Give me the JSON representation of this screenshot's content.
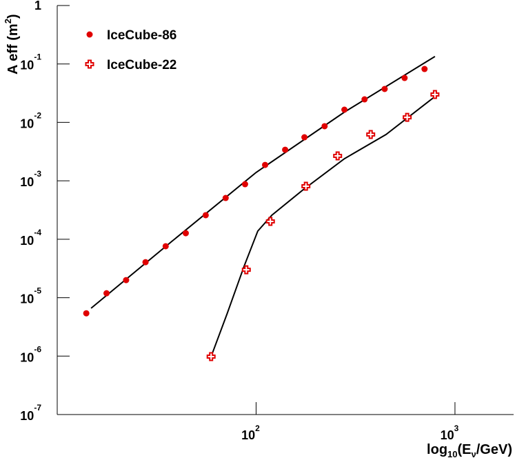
{
  "chart_data": {
    "type": "scatter",
    "x_label": [
      "log",
      "10",
      "(E",
      "ν",
      "/GeV)"
    ],
    "y_label": [
      "A eff (m",
      "2",
      ")"
    ],
    "xlog": true,
    "ylog": true,
    "xlim": [
      10,
      1972
    ],
    "ylim": [
      1e-07,
      1
    ],
    "xticks": [
      {
        "value": 100,
        "label": "10",
        "exponent": "2"
      },
      {
        "value": 1000,
        "label": "10",
        "exponent": "3"
      }
    ],
    "yticks": [
      1,
      {
        "value": 0.1,
        "label": "10",
        "exponent": "-1"
      },
      {
        "value": 0.01,
        "label": "10",
        "exponent": "-2"
      },
      {
        "value": 0.001,
        "label": "10",
        "exponent": "-3"
      },
      {
        "value": 0.0001,
        "label": "10",
        "exponent": "-4"
      },
      {
        "value": 1e-05,
        "label": "10",
        "exponent": "-5"
      },
      {
        "value": 1e-06,
        "label": "10",
        "exponent": "-6"
      },
      {
        "value": 1e-07,
        "label": "10",
        "exponent": "-7"
      }
    ],
    "legend": "top-left",
    "series": [
      {
        "name": "IceCube-86",
        "color": "#e00000",
        "marker": "circle",
        "x": [
          14.0,
          17.7,
          22.2,
          27.8,
          35.1,
          44.3,
          55.8,
          70.3,
          88,
          111,
          140,
          175,
          221,
          278,
          351,
          443,
          558,
          703
        ],
        "values": [
          5.4e-06,
          1.19e-05,
          2e-05,
          4.05e-05,
          7.6e-05,
          0.000127,
          0.000258,
          0.000508,
          0.000875,
          0.00187,
          0.0034,
          0.00556,
          0.0086,
          0.0165,
          0.0248,
          0.0373,
          0.0576,
          0.082
        ],
        "fit": {
          "x": [
            14.8,
            37.7,
            100,
            278,
            793
          ],
          "values": [
            6.6e-06,
            9.2e-05,
            0.00139,
            0.015,
            0.134
          ]
        }
      },
      {
        "name": "IceCube-22",
        "color": "#e00000",
        "marker": "cross",
        "x": [
          59.4,
          89.3,
          118,
          178,
          257,
          377,
          575,
          793
        ],
        "values": [
          9.8e-07,
          3e-05,
          0.000202,
          0.000807,
          0.00267,
          0.0062,
          0.0122,
          0.03
        ],
        "fit": {
          "x": [
            59.4,
            71.5,
            87.3,
            102,
            120,
            172,
            278,
            450,
            793
          ],
          "values": [
            9.8e-07,
            5.3e-06,
            3.54e-05,
            0.000138,
            0.000258,
            0.0007,
            0.00239,
            0.0062,
            0.0277
          ]
        }
      }
    ]
  }
}
